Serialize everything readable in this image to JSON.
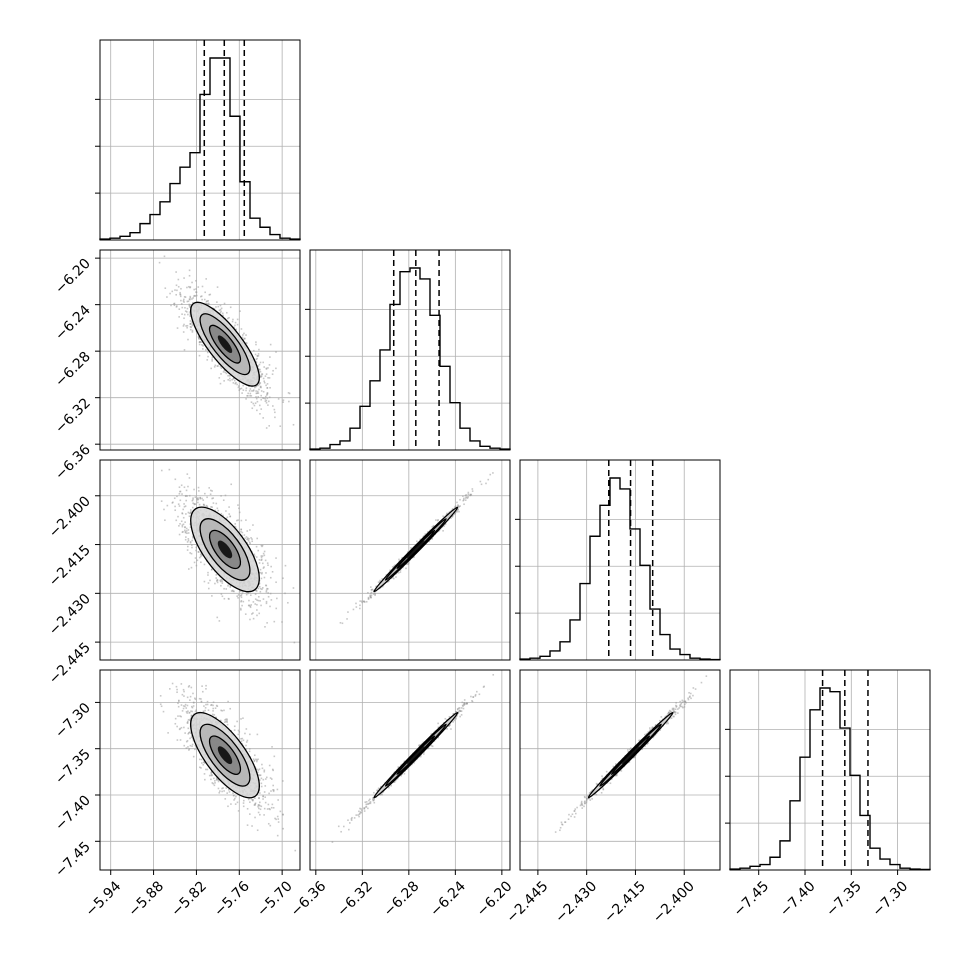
{
  "chart_data": {
    "type": "corner",
    "parameters": 4,
    "colors": {
      "frame": "#000000",
      "grid": "#b0b0b0",
      "histogram": "#000000",
      "quantile_line": "#000000",
      "scatter_points": "#9a9a9a",
      "density_dark": "#111111"
    },
    "grid": true,
    "quantiles": [
      0.16,
      0.5,
      0.84
    ],
    "axes": [
      {
        "range": [
          -5.955,
          -5.675
        ],
        "ticks": [
          -5.94,
          -5.88,
          -5.82,
          -5.76,
          -5.7
        ],
        "tick_labels": [
          "−5.94",
          "−5.88",
          "−5.82",
          "−5.76",
          "−5.70"
        ],
        "center": -5.78,
        "sd": 0.024,
        "quantile_values": [
          -5.809,
          -5.781,
          -5.753
        ]
      },
      {
        "range": [
          -6.365,
          -6.193
        ],
        "ticks": [
          -6.36,
          -6.32,
          -6.28,
          -6.24,
          -6.2
        ],
        "tick_labels": [
          "−6.36",
          "−6.32",
          "−6.28",
          "−6.24",
          "−6.20"
        ],
        "center": -6.274,
        "sd": 0.018,
        "quantile_values": [
          -6.293,
          -6.274,
          -6.254
        ]
      },
      {
        "range": [
          -2.4505,
          -2.389
        ],
        "ticks": [
          -2.445,
          -2.43,
          -2.415,
          -2.4
        ],
        "tick_labels": [
          "−2.445",
          "−2.430",
          "−2.415",
          "−2.400"
        ],
        "center": -2.4165,
        "sd": 0.0065,
        "quantile_values": [
          -2.4232,
          -2.4165,
          -2.4097
        ]
      },
      {
        "range": [
          -7.481,
          -7.265
        ],
        "ticks": [
          -7.45,
          -7.4,
          -7.35,
          -7.3
        ],
        "tick_labels": [
          "−7.45",
          "−7.40",
          "−7.35",
          "−7.30"
        ],
        "center": -7.357,
        "sd": 0.023,
        "quantile_values": [
          -7.381,
          -7.357,
          -7.332
        ]
      }
    ],
    "histograms": [
      {
        "param": 0,
        "bins": 20,
        "counts": [
          0.5,
          1,
          2,
          4,
          9,
          14,
          21,
          31,
          40,
          48,
          80,
          100,
          100,
          68,
          32,
          12,
          7,
          3,
          1,
          0.5
        ]
      },
      {
        "param": 1,
        "bins": 20,
        "counts": [
          0.5,
          1,
          3,
          5,
          12,
          24,
          38,
          55,
          80,
          98,
          100,
          94,
          74,
          46,
          26,
          12,
          5,
          2,
          1,
          0.5
        ]
      },
      {
        "param": 2,
        "bins": 20,
        "counts": [
          0.5,
          1,
          2,
          5,
          10,
          22,
          42,
          68,
          85,
          100,
          94,
          72,
          52,
          28,
          14,
          6,
          3,
          1,
          0.5,
          0.2
        ]
      },
      {
        "param": 3,
        "bins": 20,
        "counts": [
          0.5,
          1,
          2,
          3,
          7,
          16,
          38,
          62,
          88,
          100,
          98,
          78,
          52,
          30,
          12,
          6,
          3,
          1,
          0.5,
          0.3
        ]
      }
    ],
    "correlations": [
      {
        "x": 0,
        "y": 1,
        "rho": -0.8
      },
      {
        "x": 0,
        "y": 2,
        "rho": -0.68
      },
      {
        "x": 0,
        "y": 3,
        "rho": -0.72
      },
      {
        "x": 1,
        "y": 2,
        "rho": 0.995
      },
      {
        "x": 1,
        "y": 3,
        "rho": 0.995
      },
      {
        "x": 2,
        "y": 3,
        "rho": 0.995
      }
    ]
  }
}
